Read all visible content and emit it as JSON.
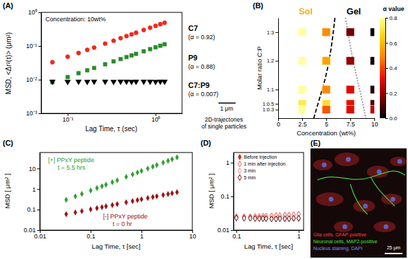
{
  "chart_data": [
    {
      "type": "scatter",
      "title": "(A)",
      "xlabel": "Lag Time, τ (sec)",
      "ylabel": "MSD, <Δr²(τ)> (μm²)",
      "log": true,
      "xlim": [
        0.05,
        2
      ],
      "xticks": [
        {
          "value": 0.1,
          "label": "10⁻¹"
        },
        {
          "value": 1,
          "label": "10⁰"
        }
      ],
      "ylim": [
        0.001,
        1
      ],
      "yticks": [
        {
          "value": 0.001,
          "label": "10⁻³"
        },
        {
          "value": 0.01,
          "label": "10⁻²"
        },
        {
          "value": 0.1,
          "label": "10⁻¹"
        },
        {
          "value": 1,
          "label": "10⁰"
        }
      ],
      "x": [
        0.067,
        0.1,
        0.133,
        0.167,
        0.2,
        0.267,
        0.333,
        0.4,
        0.467,
        0.533,
        0.6,
        0.733,
        0.867,
        1.0,
        1.133,
        1.267
      ],
      "series": [
        {
          "name": "C7",
          "color": "#ee2a1e",
          "marker": "circle",
          "values": [
            0.033,
            0.048,
            0.062,
            0.077,
            0.09,
            0.118,
            0.144,
            0.171,
            0.197,
            0.222,
            0.248,
            0.299,
            0.35,
            0.396,
            0.446,
            0.492
          ]
        },
        {
          "name": "P9",
          "color": "#2a8a2a",
          "marker": "square",
          "values": [
            0.0085,
            0.012,
            0.0156,
            0.019,
            0.0223,
            0.0287,
            0.035,
            0.041,
            0.047,
            0.0527,
            0.0585,
            0.0698,
            0.0808,
            0.0918,
            0.102,
            0.113
          ]
        },
        {
          "name": "C7:P9",
          "color": "#000000",
          "marker": "triangle-down",
          "values": [
            0.0088,
            0.0087,
            0.0088,
            0.0087,
            0.0088,
            0.0088,
            0.0087,
            0.0088,
            0.0088,
            0.0087,
            0.0088,
            0.0088,
            0.0088,
            0.0087,
            0.0088,
            0.0088
          ]
        }
      ],
      "annotations": [
        "Concentration: 10wt%",
        "(α = 0.92)",
        "(α = 0.88)",
        "(α = 0.007)",
        "2D-trajectories",
        "of single particles",
        "1 μm"
      ]
    },
    {
      "type": "heatmap",
      "title": "(B)",
      "xlabel": "Concentration (wt%)",
      "ylabel": "Molar ratio C:P",
      "xlim": [
        0,
        10
      ],
      "xticks": [
        0,
        2.5,
        5,
        7.5,
        10
      ],
      "ylim": [
        0,
        3.5
      ],
      "yticks": [
        {
          "value": 3,
          "label": "1:3"
        },
        {
          "value": 2,
          "label": "1:2"
        },
        {
          "value": 1,
          "label": "1:1"
        },
        {
          "value": 0.5,
          "label": "1:0.5"
        },
        {
          "value": 0.3,
          "label": "1:0.3"
        }
      ],
      "x": [
        2.5,
        5,
        7.5,
        10
      ],
      "y": [
        3,
        2,
        1,
        0.5,
        0.3
      ],
      "cells": [
        [
          0.8,
          0.5,
          0.15,
          0.0
        ],
        [
          0.8,
          0.55,
          0.2,
          0.02
        ],
        [
          0.8,
          0.5,
          0.3,
          0.05
        ],
        [
          0.72,
          0.68,
          0.32,
          0.1
        ],
        [
          0.8,
          0.42,
          0.3,
          0.25
        ]
      ],
      "marker": "square",
      "colorbar": {
        "title": "α value",
        "lim": [
          0,
          0.8
        ],
        "ticks": [
          {
            "value": 0,
            "label": "0.0"
          },
          0.2,
          0.4,
          0.6,
          0.8
        ],
        "colors": [
          "#000000",
          "#7a0000",
          "#e81000",
          "#ff8000",
          "#ffd000",
          "#ffffa0"
        ]
      },
      "annotations": [
        "Sol",
        "Gel"
      ]
    },
    {
      "type": "scatter",
      "title": "(C)",
      "xlabel": "Lag Time, τ [sec]",
      "ylabel": "MSD [ μm² ]",
      "log": true,
      "xlim": [
        0.01,
        10
      ],
      "xticks": [
        0.01,
        0.1,
        1,
        10
      ],
      "ylim": [
        0.01,
        60
      ],
      "yticks": [
        0.01,
        0.1,
        1,
        10
      ],
      "x": [
        0.033,
        0.05,
        0.067,
        0.1,
        0.133,
        0.167,
        0.2,
        0.267,
        0.333,
        0.5,
        0.667,
        0.833,
        1,
        1.33,
        1.67,
        2,
        2.67,
        3.33,
        4,
        5
      ],
      "series": [
        {
          "name": "[+] PPxY peptide",
          "color": "#2e9e2e",
          "marker": "diamond",
          "values": [
            0.3,
            0.44,
            0.58,
            0.85,
            1.12,
            1.38,
            1.65,
            2.16,
            2.67,
            3.93,
            5.16,
            6.39,
            7.62,
            9.96,
            12.3,
            14.7,
            19.3,
            23.8,
            28.4,
            35.1
          ]
        },
        {
          "name": "[-] PPxY peptide",
          "color": "#9a1010",
          "marker": "diamond",
          "values": [
            0.06,
            0.073,
            0.084,
            0.103,
            0.118,
            0.132,
            0.145,
            0.166,
            0.185,
            0.226,
            0.26,
            0.29,
            0.317,
            0.365,
            0.408,
            0.446,
            0.514,
            0.573,
            0.626,
            0.7
          ]
        }
      ],
      "annotations": [
        "t = 5.5 hrs",
        "t = 0 hr"
      ]
    },
    {
      "type": "scatter",
      "title": "(D)",
      "xlabel": "Lag Time,  τ  [sec]",
      "ylabel": "MSD [ μm² ]",
      "log": true,
      "xlim": [
        0.09,
        1.2
      ],
      "xticks": [
        0.1,
        1
      ],
      "ylim": [
        0.01,
        2
      ],
      "yticks": [
        0.01,
        0.1,
        1
      ],
      "legend": "upper left",
      "x": [
        0.1,
        0.133,
        0.167,
        0.2,
        0.233,
        0.267,
        0.3,
        0.367,
        0.433,
        0.5,
        0.6,
        0.7,
        0.833,
        1.0
      ],
      "series": [
        {
          "name": "Before injection",
          "color": "#d7261e",
          "marker": "diamond",
          "values": [
            0.025,
            0.0245,
            0.0245,
            0.024,
            0.024,
            0.024,
            0.024,
            0.0235,
            0.0235,
            0.0235,
            0.023,
            0.023,
            0.023,
            0.023
          ]
        },
        {
          "name": "1 min after injection",
          "color": "#e8504a",
          "marker": "open-diamond",
          "values": [
            0.025,
            0.025,
            0.025,
            0.0255,
            0.0255,
            0.026,
            0.026,
            0.0265,
            0.027,
            0.027,
            0.028,
            0.028,
            0.029,
            0.03
          ]
        },
        {
          "name": "3 min",
          "color": "#f08a80",
          "marker": "open-diamond",
          "values": [
            0.024,
            0.0235,
            0.023,
            0.023,
            0.0225,
            0.0225,
            0.022,
            0.022,
            0.022,
            0.022,
            0.0215,
            0.0215,
            0.022,
            0.022
          ]
        },
        {
          "name": "5 min",
          "color": "#5a1010",
          "marker": "open-diamond",
          "values": [
            0.023,
            0.0225,
            0.0225,
            0.022,
            0.022,
            0.022,
            0.022,
            0.0215,
            0.0215,
            0.022,
            0.022,
            0.022,
            0.0225,
            0.0225
          ]
        }
      ]
    },
    {
      "type": "image",
      "title": "(E)",
      "annotations": [
        "Glia cells, GFAP-positive",
        "Neuronal cells, MAP2-positive",
        "Nucleus staining, DAPI",
        "25 μm"
      ]
    }
  ]
}
